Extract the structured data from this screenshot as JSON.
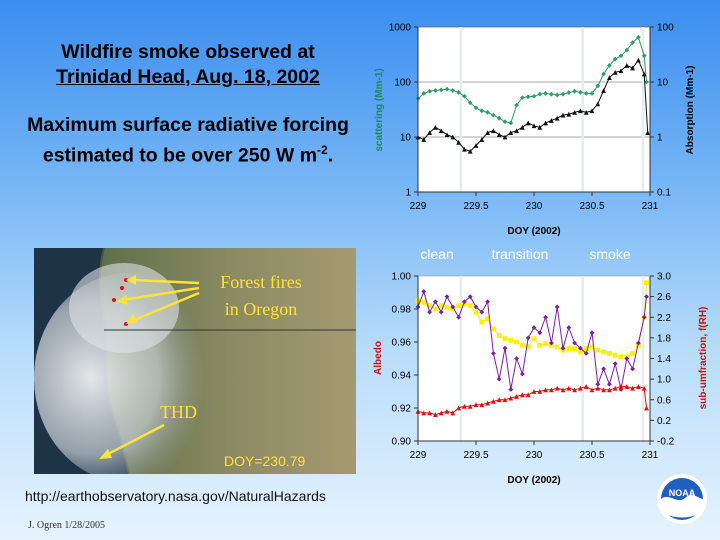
{
  "slide": {
    "title_line1": "Wildfire smoke observed at",
    "title_line2": "Trinidad Head, Aug. 18, 2002",
    "subtitle_main": "Maximum surface radiative forcing estimated to be over 250 W m",
    "subtitle_sup": "-2",
    "subtitle_end": ".",
    "url": "http://earthobservatory.nasa.gov/NaturalHazards",
    "credit": "J. Ogren  1/28/2005",
    "logo_text": "NOAA"
  },
  "satellite": {
    "label_fires_1": "Forest fires",
    "label_fires_2": "in Oregon",
    "label_site": "THD",
    "label_doy": "DOY=230.79",
    "colors": {
      "fire_label": "#ffe23a",
      "doy_label": "#ffe23a"
    }
  },
  "period_labels": [
    "clean",
    "transition",
    "smoke"
  ],
  "chart_data": [
    {
      "type": "line",
      "xlabel": "DOY (2002)",
      "ylabel_left": "scattering (Mm-1)",
      "ylabel_right": "Absorption (Mm-1)",
      "xlim": [
        229,
        231
      ],
      "x_ticks": [
        "229",
        "229.5",
        "230",
        "230.5",
        "231"
      ],
      "ylim_left": [
        1,
        1000
      ],
      "y_ticks_left": [
        "1",
        "10",
        "100",
        "1000"
      ],
      "ylim_right": [
        0.1,
        100
      ],
      "y_ticks_right": [
        "0.1",
        "1",
        "10",
        "100"
      ],
      "yscale": "log",
      "grid": "horizontal major",
      "vertical_markers": [
        229.37,
        230.42,
        230.94
      ],
      "series": [
        {
          "axis": "left",
          "color": "#2e9e6a",
          "marker": "diamond",
          "x": [
            229.0,
            229.05,
            229.1,
            229.15,
            229.2,
            229.25,
            229.3,
            229.35,
            229.4,
            229.45,
            229.5,
            229.55,
            229.6,
            229.65,
            229.7,
            229.75,
            229.8,
            229.85,
            229.9,
            229.95,
            230.0,
            230.05,
            230.1,
            230.15,
            230.2,
            230.25,
            230.3,
            230.35,
            230.4,
            230.45,
            230.5,
            230.55,
            230.6,
            230.65,
            230.7,
            230.75,
            230.8,
            230.85,
            230.9,
            230.95,
            230.97
          ],
          "values": [
            50,
            62,
            68,
            70,
            72,
            74,
            70,
            65,
            55,
            42,
            34,
            30,
            28,
            25,
            22,
            19,
            18,
            38,
            52,
            54,
            55,
            60,
            62,
            60,
            58,
            60,
            64,
            68,
            65,
            62,
            62,
            85,
            140,
            200,
            260,
            300,
            380,
            520,
            650,
            300,
            100
          ]
        },
        {
          "axis": "right",
          "color": "#111111",
          "marker": "triangle",
          "x": [
            229.0,
            229.05,
            229.1,
            229.15,
            229.2,
            229.25,
            229.3,
            229.35,
            229.4,
            229.45,
            229.5,
            229.55,
            229.6,
            229.65,
            229.7,
            229.75,
            229.8,
            229.85,
            229.9,
            229.95,
            230.0,
            230.05,
            230.1,
            230.15,
            230.2,
            230.25,
            230.3,
            230.35,
            230.4,
            230.45,
            230.5,
            230.55,
            230.6,
            230.65,
            230.7,
            230.75,
            230.8,
            230.85,
            230.9,
            230.95,
            230.98
          ],
          "values": [
            1.0,
            0.9,
            1.2,
            1.5,
            1.3,
            1.1,
            1.0,
            0.8,
            0.6,
            0.55,
            0.7,
            0.9,
            1.2,
            1.3,
            1.1,
            1.0,
            1.2,
            1.3,
            1.5,
            1.8,
            1.6,
            1.5,
            1.8,
            2.0,
            2.2,
            2.5,
            2.6,
            2.8,
            3.0,
            2.8,
            3.0,
            4.0,
            7.0,
            12,
            15,
            16,
            20,
            18,
            25,
            14,
            1.2
          ]
        }
      ]
    },
    {
      "type": "line",
      "xlabel": "DOY (2002)",
      "ylabel_left": "Albedo",
      "ylabel_right": "sub-umfraction, f(RH)",
      "xlim": [
        229,
        231
      ],
      "x_ticks": [
        "229",
        "229.5",
        "230",
        "230.5",
        "231"
      ],
      "ylim_left": [
        0.9,
        1.0
      ],
      "y_ticks_left": [
        "0.90",
        "0.92",
        "0.94",
        "0.96",
        "0.98",
        "1.00"
      ],
      "ylim_right": [
        -0.2,
        3.0
      ],
      "y_ticks_right": [
        "-0.2",
        "0.2",
        "0.6",
        "1.0",
        "1.4",
        "1.8",
        "2.2",
        "2.6",
        "3.0"
      ],
      "grid": "none",
      "vertical_markers": [
        229.37,
        230.42,
        230.94
      ],
      "series": [
        {
          "axis": "left",
          "color": "#ffef00",
          "marker": "square",
          "x": [
            229.0,
            229.05,
            229.1,
            229.15,
            229.2,
            229.25,
            229.3,
            229.35,
            229.4,
            229.45,
            229.5,
            229.55,
            229.6,
            229.65,
            229.7,
            229.75,
            229.8,
            229.85,
            229.9,
            229.95,
            230.0,
            230.05,
            230.1,
            230.15,
            230.2,
            230.25,
            230.3,
            230.35,
            230.4,
            230.45,
            230.5,
            230.55,
            230.6,
            230.65,
            230.7,
            230.75,
            230.8,
            230.85,
            230.9,
            230.95,
            230.97
          ],
          "values": [
            0.985,
            0.984,
            0.982,
            0.98,
            0.982,
            0.981,
            0.98,
            0.982,
            0.983,
            0.982,
            0.978,
            0.972,
            0.974,
            0.968,
            0.964,
            0.962,
            0.961,
            0.96,
            0.958,
            0.957,
            0.962,
            0.958,
            0.959,
            0.958,
            0.957,
            0.955,
            0.956,
            0.956,
            0.954,
            0.956,
            0.957,
            0.955,
            0.954,
            0.953,
            0.952,
            0.951,
            0.951,
            0.953,
            0.958,
            0.975,
            0.996
          ]
        },
        {
          "axis": "right",
          "color": "#7b1fa2",
          "marker": "diamond",
          "x": [
            229.0,
            229.05,
            229.1,
            229.15,
            229.2,
            229.25,
            229.3,
            229.35,
            229.4,
            229.45,
            229.5,
            229.55,
            229.6,
            229.65,
            229.7,
            229.75,
            229.8,
            229.85,
            229.9,
            229.95,
            230.0,
            230.05,
            230.1,
            230.15,
            230.2,
            230.25,
            230.3,
            230.35,
            230.4,
            230.45,
            230.5,
            230.55,
            230.6,
            230.65,
            230.7,
            230.75,
            230.8,
            230.85,
            230.9,
            230.95,
            230.97
          ],
          "values": [
            2.4,
            2.7,
            2.3,
            2.5,
            2.3,
            2.6,
            2.4,
            2.2,
            2.5,
            2.6,
            2.4,
            2.3,
            2.5,
            1.5,
            1.0,
            1.6,
            0.8,
            1.4,
            1.1,
            1.8,
            2.0,
            1.9,
            2.2,
            1.7,
            2.4,
            1.6,
            2.0,
            1.7,
            1.6,
            1.5,
            1.9,
            0.9,
            1.2,
            0.9,
            1.3,
            0.8,
            1.4,
            1.2,
            1.7,
            2.2,
            2.6
          ]
        },
        {
          "axis": "left",
          "color": "#e01010",
          "marker": "triangle",
          "x": [
            229.0,
            229.05,
            229.1,
            229.15,
            229.2,
            229.25,
            229.3,
            229.35,
            229.4,
            229.45,
            229.5,
            229.55,
            229.6,
            229.65,
            229.7,
            229.75,
            229.8,
            229.85,
            229.9,
            229.95,
            230.0,
            230.05,
            230.1,
            230.15,
            230.2,
            230.25,
            230.3,
            230.35,
            230.4,
            230.45,
            230.5,
            230.55,
            230.6,
            230.65,
            230.7,
            230.75,
            230.8,
            230.85,
            230.9,
            230.95,
            230.97
          ],
          "values": [
            0.918,
            0.917,
            0.917,
            0.916,
            0.917,
            0.918,
            0.917,
            0.92,
            0.921,
            0.921,
            0.922,
            0.922,
            0.923,
            0.924,
            0.925,
            0.925,
            0.926,
            0.927,
            0.928,
            0.928,
            0.93,
            0.93,
            0.931,
            0.931,
            0.932,
            0.931,
            0.932,
            0.931,
            0.932,
            0.933,
            0.931,
            0.932,
            0.931,
            0.931,
            0.932,
            0.933,
            0.933,
            0.932,
            0.933,
            0.932,
            0.92
          ]
        }
      ]
    }
  ]
}
